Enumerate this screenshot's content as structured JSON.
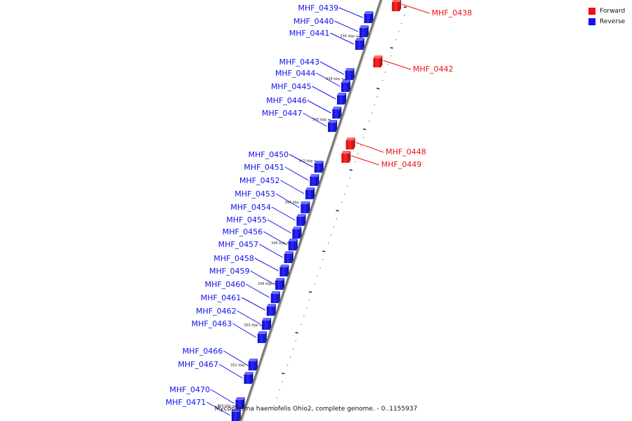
{
  "colors": {
    "forward": "#ee1111",
    "reverse": "#1111ee",
    "backbone": "#777777",
    "tick": "#222222"
  },
  "legend": [
    {
      "label": "Forward",
      "strand": "forward"
    },
    {
      "label": "Reverse",
      "strand": "reverse"
    }
  ],
  "caption": "Mycoplasma haemofelis Ohio2, complete genome. - 0..1155937",
  "genes": [
    {
      "name": "MHF_0438",
      "strand": "forward"
    },
    {
      "name": "MHF_0439",
      "strand": "reverse"
    },
    {
      "name": "MHF_0440",
      "strand": "reverse"
    },
    {
      "name": "MHF_0441",
      "strand": "reverse"
    },
    {
      "name": "MHF_0442",
      "strand": "forward"
    },
    {
      "name": "MHF_0443",
      "strand": "reverse"
    },
    {
      "name": "MHF_0444",
      "strand": "reverse"
    },
    {
      "name": "MHF_0445",
      "strand": "reverse"
    },
    {
      "name": "MHF_0446",
      "strand": "reverse"
    },
    {
      "name": "MHF_0447",
      "strand": "reverse"
    },
    {
      "name": "MHF_0448",
      "strand": "forward"
    },
    {
      "name": "MHF_0449",
      "strand": "forward"
    },
    {
      "name": "MHF_0450",
      "strand": "reverse"
    },
    {
      "name": "MHF_0451",
      "strand": "reverse"
    },
    {
      "name": "MHF_0452",
      "strand": "reverse"
    },
    {
      "name": "MHF_0453",
      "strand": "reverse"
    },
    {
      "name": "MHF_0454",
      "strand": "reverse"
    },
    {
      "name": "MHF_0455",
      "strand": "reverse"
    },
    {
      "name": "MHF_0456",
      "strand": "reverse"
    },
    {
      "name": "MHF_0457",
      "strand": "reverse"
    },
    {
      "name": "MHF_0458",
      "strand": "reverse"
    },
    {
      "name": "MHF_0459",
      "strand": "reverse"
    },
    {
      "name": "MHF_0460",
      "strand": "reverse"
    },
    {
      "name": "MHF_0461",
      "strand": "reverse"
    },
    {
      "name": "MHF_0462",
      "strand": "reverse"
    },
    {
      "name": "MHF_0463",
      "strand": "reverse"
    },
    {
      "name": "MHF_0466",
      "strand": "reverse"
    },
    {
      "name": "MHF_0467",
      "strand": "reverse"
    },
    {
      "name": "MHF_0470",
      "strand": "reverse"
    },
    {
      "name": "MHF_0471",
      "strand": "reverse"
    }
  ],
  "kbp_labels": [
    "336 kbp",
    "338 kbp",
    "340 kbp",
    "342 kbp",
    "344 kbp",
    "346 kbp",
    "348 kbp",
    "350 kbp",
    "352 kbp",
    "354 kbp"
  ]
}
